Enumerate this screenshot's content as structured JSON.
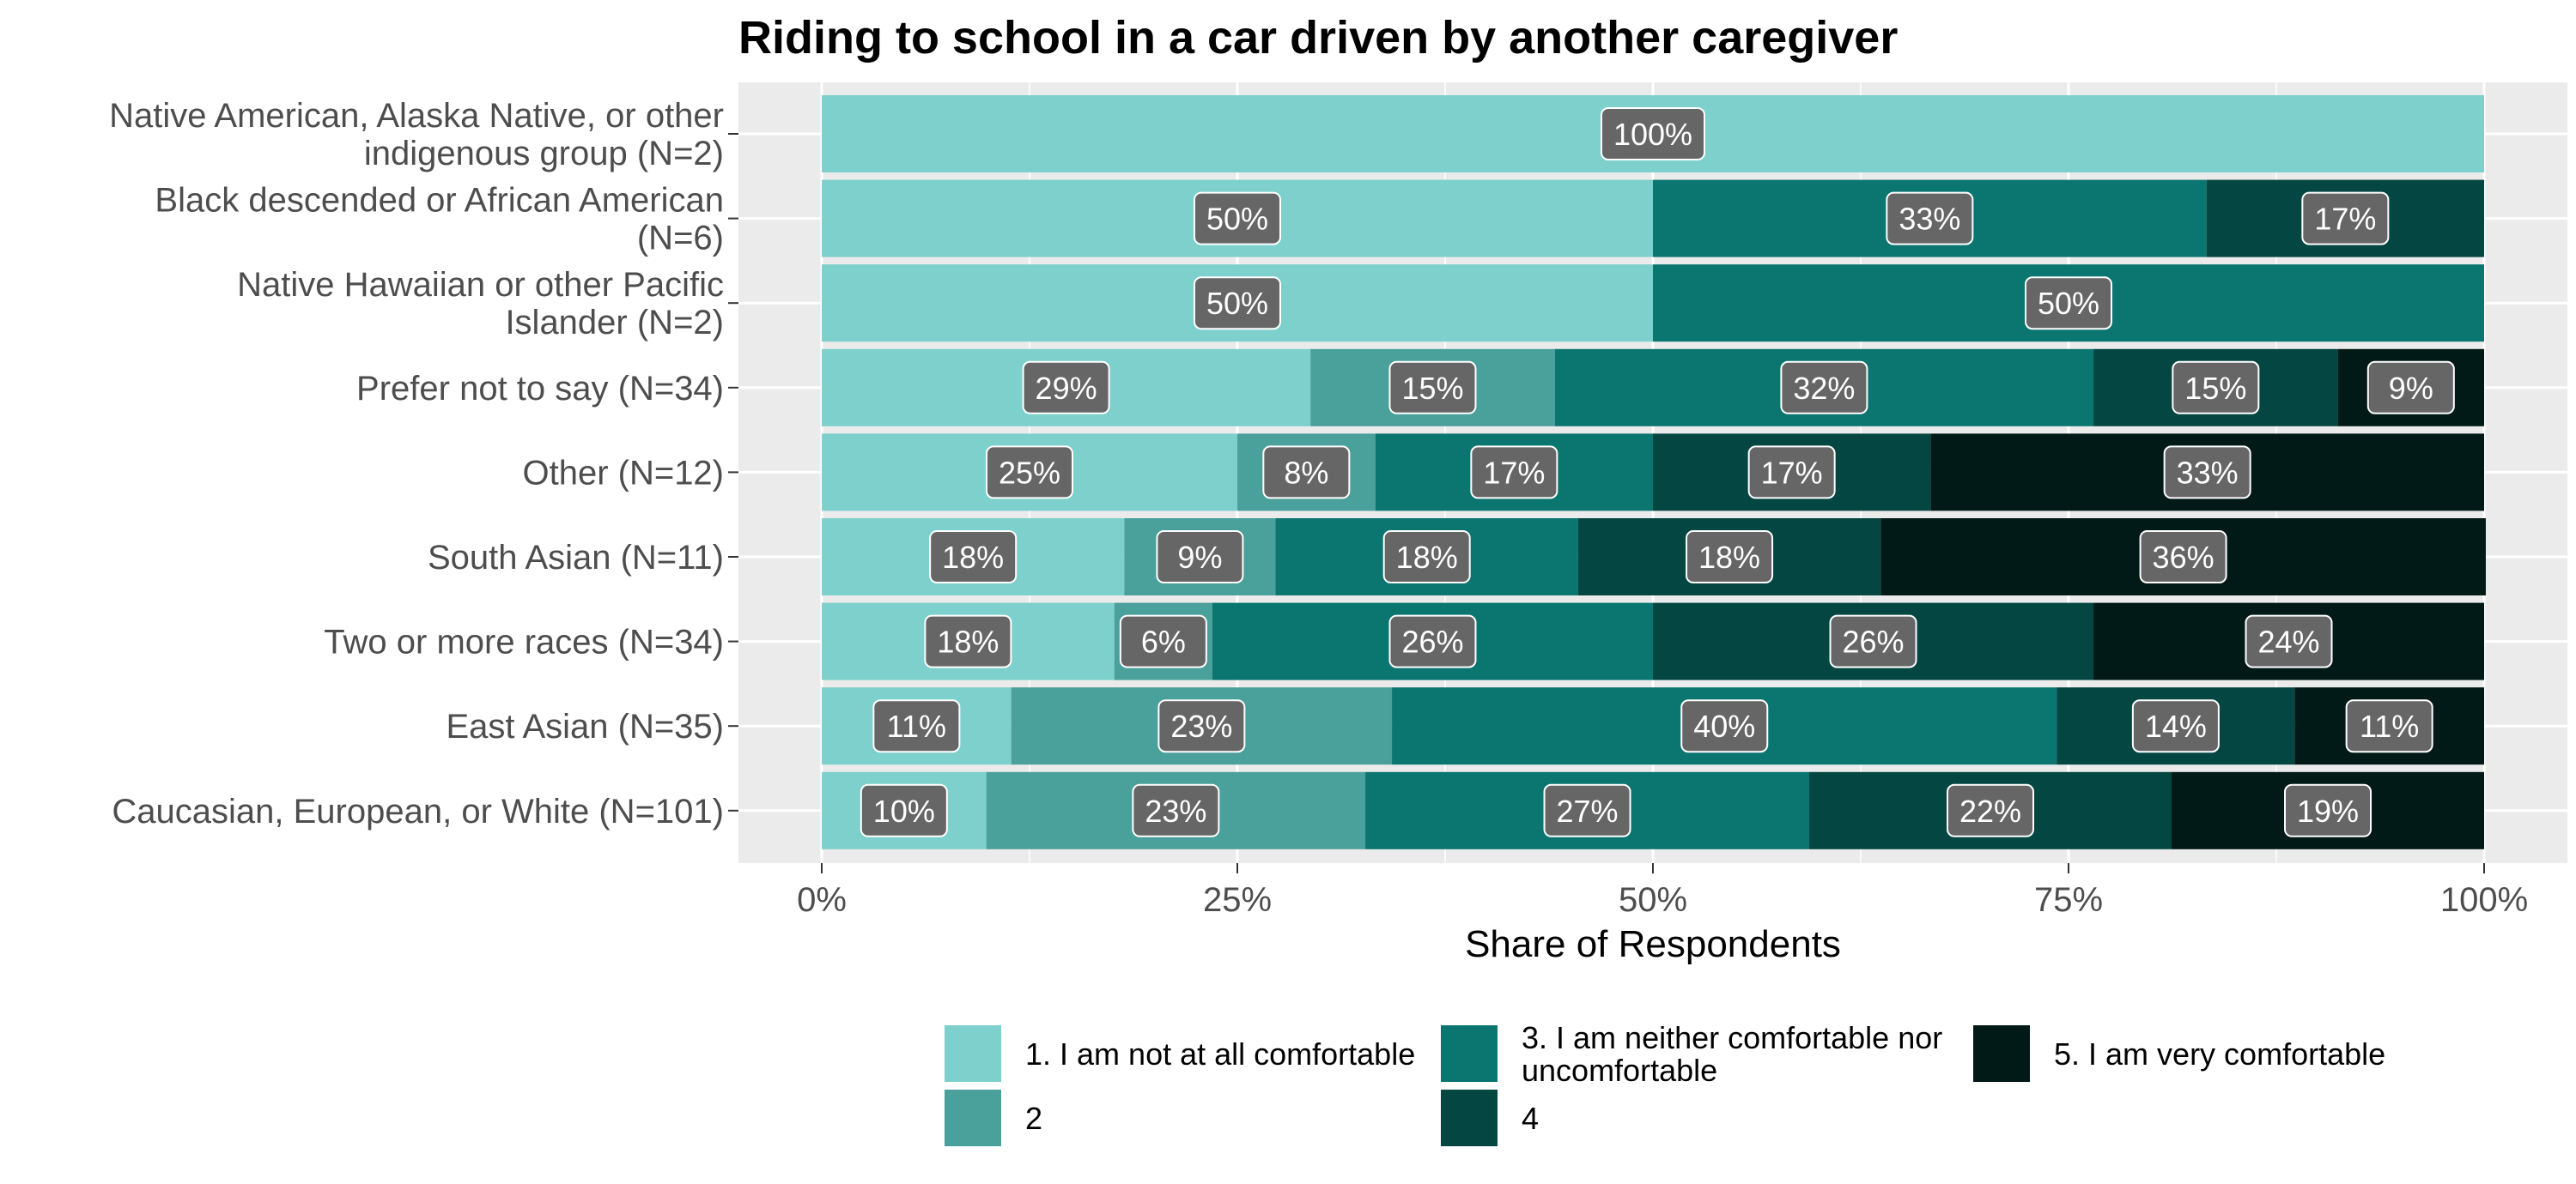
{
  "chart_data": {
    "type": "bar",
    "orientation": "horizontal",
    "stacked": true,
    "title": "Riding to school in a car driven by another caregiver",
    "xlabel": "Share of Respondents",
    "ylabel": "",
    "xlim": [
      0,
      1
    ],
    "x_ticks": [
      "0%",
      "25%",
      "50%",
      "75%",
      "100%"
    ],
    "grid": true,
    "legend_position": "bottom",
    "categories": [
      [
        "Native American, Alaska Native, or other",
        "indigenous group (N=2)"
      ],
      [
        "Black descended or African American",
        "(N=6)"
      ],
      [
        "Native Hawaiian or other Pacific",
        "Islander (N=2)"
      ],
      [
        "Prefer not to say (N=34)"
      ],
      [
        "Other (N=12)"
      ],
      [
        "South Asian (N=11)"
      ],
      [
        "Two or more races (N=34)"
      ],
      [
        "East Asian (N=35)"
      ],
      [
        "Caucasian, European, or White (N=101)"
      ]
    ],
    "series": [
      {
        "name": "1. I am not at all comfortable",
        "color": "#7dd0cb",
        "values": [
          1.0,
          0.5,
          0.5,
          0.294,
          0.25,
          0.182,
          0.176,
          0.114,
          0.099
        ],
        "labels": [
          "100%",
          "50%",
          "50%",
          "29%",
          "25%",
          "18%",
          "18%",
          "11%",
          "10%"
        ]
      },
      {
        "name": "2",
        "color": "#4aa09a",
        "values": [
          0,
          0,
          0,
          0.147,
          0.083,
          0.091,
          0.059,
          0.229,
          0.228
        ],
        "labels": [
          "",
          "",
          "",
          "15%",
          "8%",
          "9%",
          "6%",
          "23%",
          "23%"
        ]
      },
      {
        "name": "3. I am neither comfortable nor uncomfortable",
        "legend_lines": [
          "3. I am neither comfortable nor",
          "uncomfortable"
        ],
        "color": "#0b7570",
        "values": [
          0,
          0.333,
          0.5,
          0.324,
          0.167,
          0.182,
          0.265,
          0.4,
          0.267
        ],
        "labels": [
          "",
          "",
          "50%",
          "32%",
          "17%",
          "18%",
          "26%",
          "40%",
          "27%"
        ]
      },
      {
        "name": "4",
        "color": "#044742",
        "values": [
          0,
          0.167,
          0,
          0.147,
          0.167,
          0.182,
          0.265,
          0.143,
          0.218
        ],
        "labels": [
          "",
          "17%",
          "",
          "15%",
          "17%",
          "18%",
          "26%",
          "14%",
          "22%"
        ]
      },
      {
        "name": "5. I am very comfortable",
        "color": "#011a17",
        "values": [
          0,
          0,
          0,
          0.088,
          0.333,
          0.364,
          0.235,
          0.114,
          0.188
        ],
        "labels": [
          "",
          "",
          "",
          "9%",
          "33%",
          "36%",
          "24%",
          "11%",
          "19%"
        ]
      }
    ],
    "bar_label_override": {
      "1": {
        "1": "33%"
      }
    }
  },
  "colors": {
    "panel_background": "#ebebeb",
    "grid_line": "#ffffff",
    "label_box": "#666666",
    "label_text": "#ffffff"
  }
}
